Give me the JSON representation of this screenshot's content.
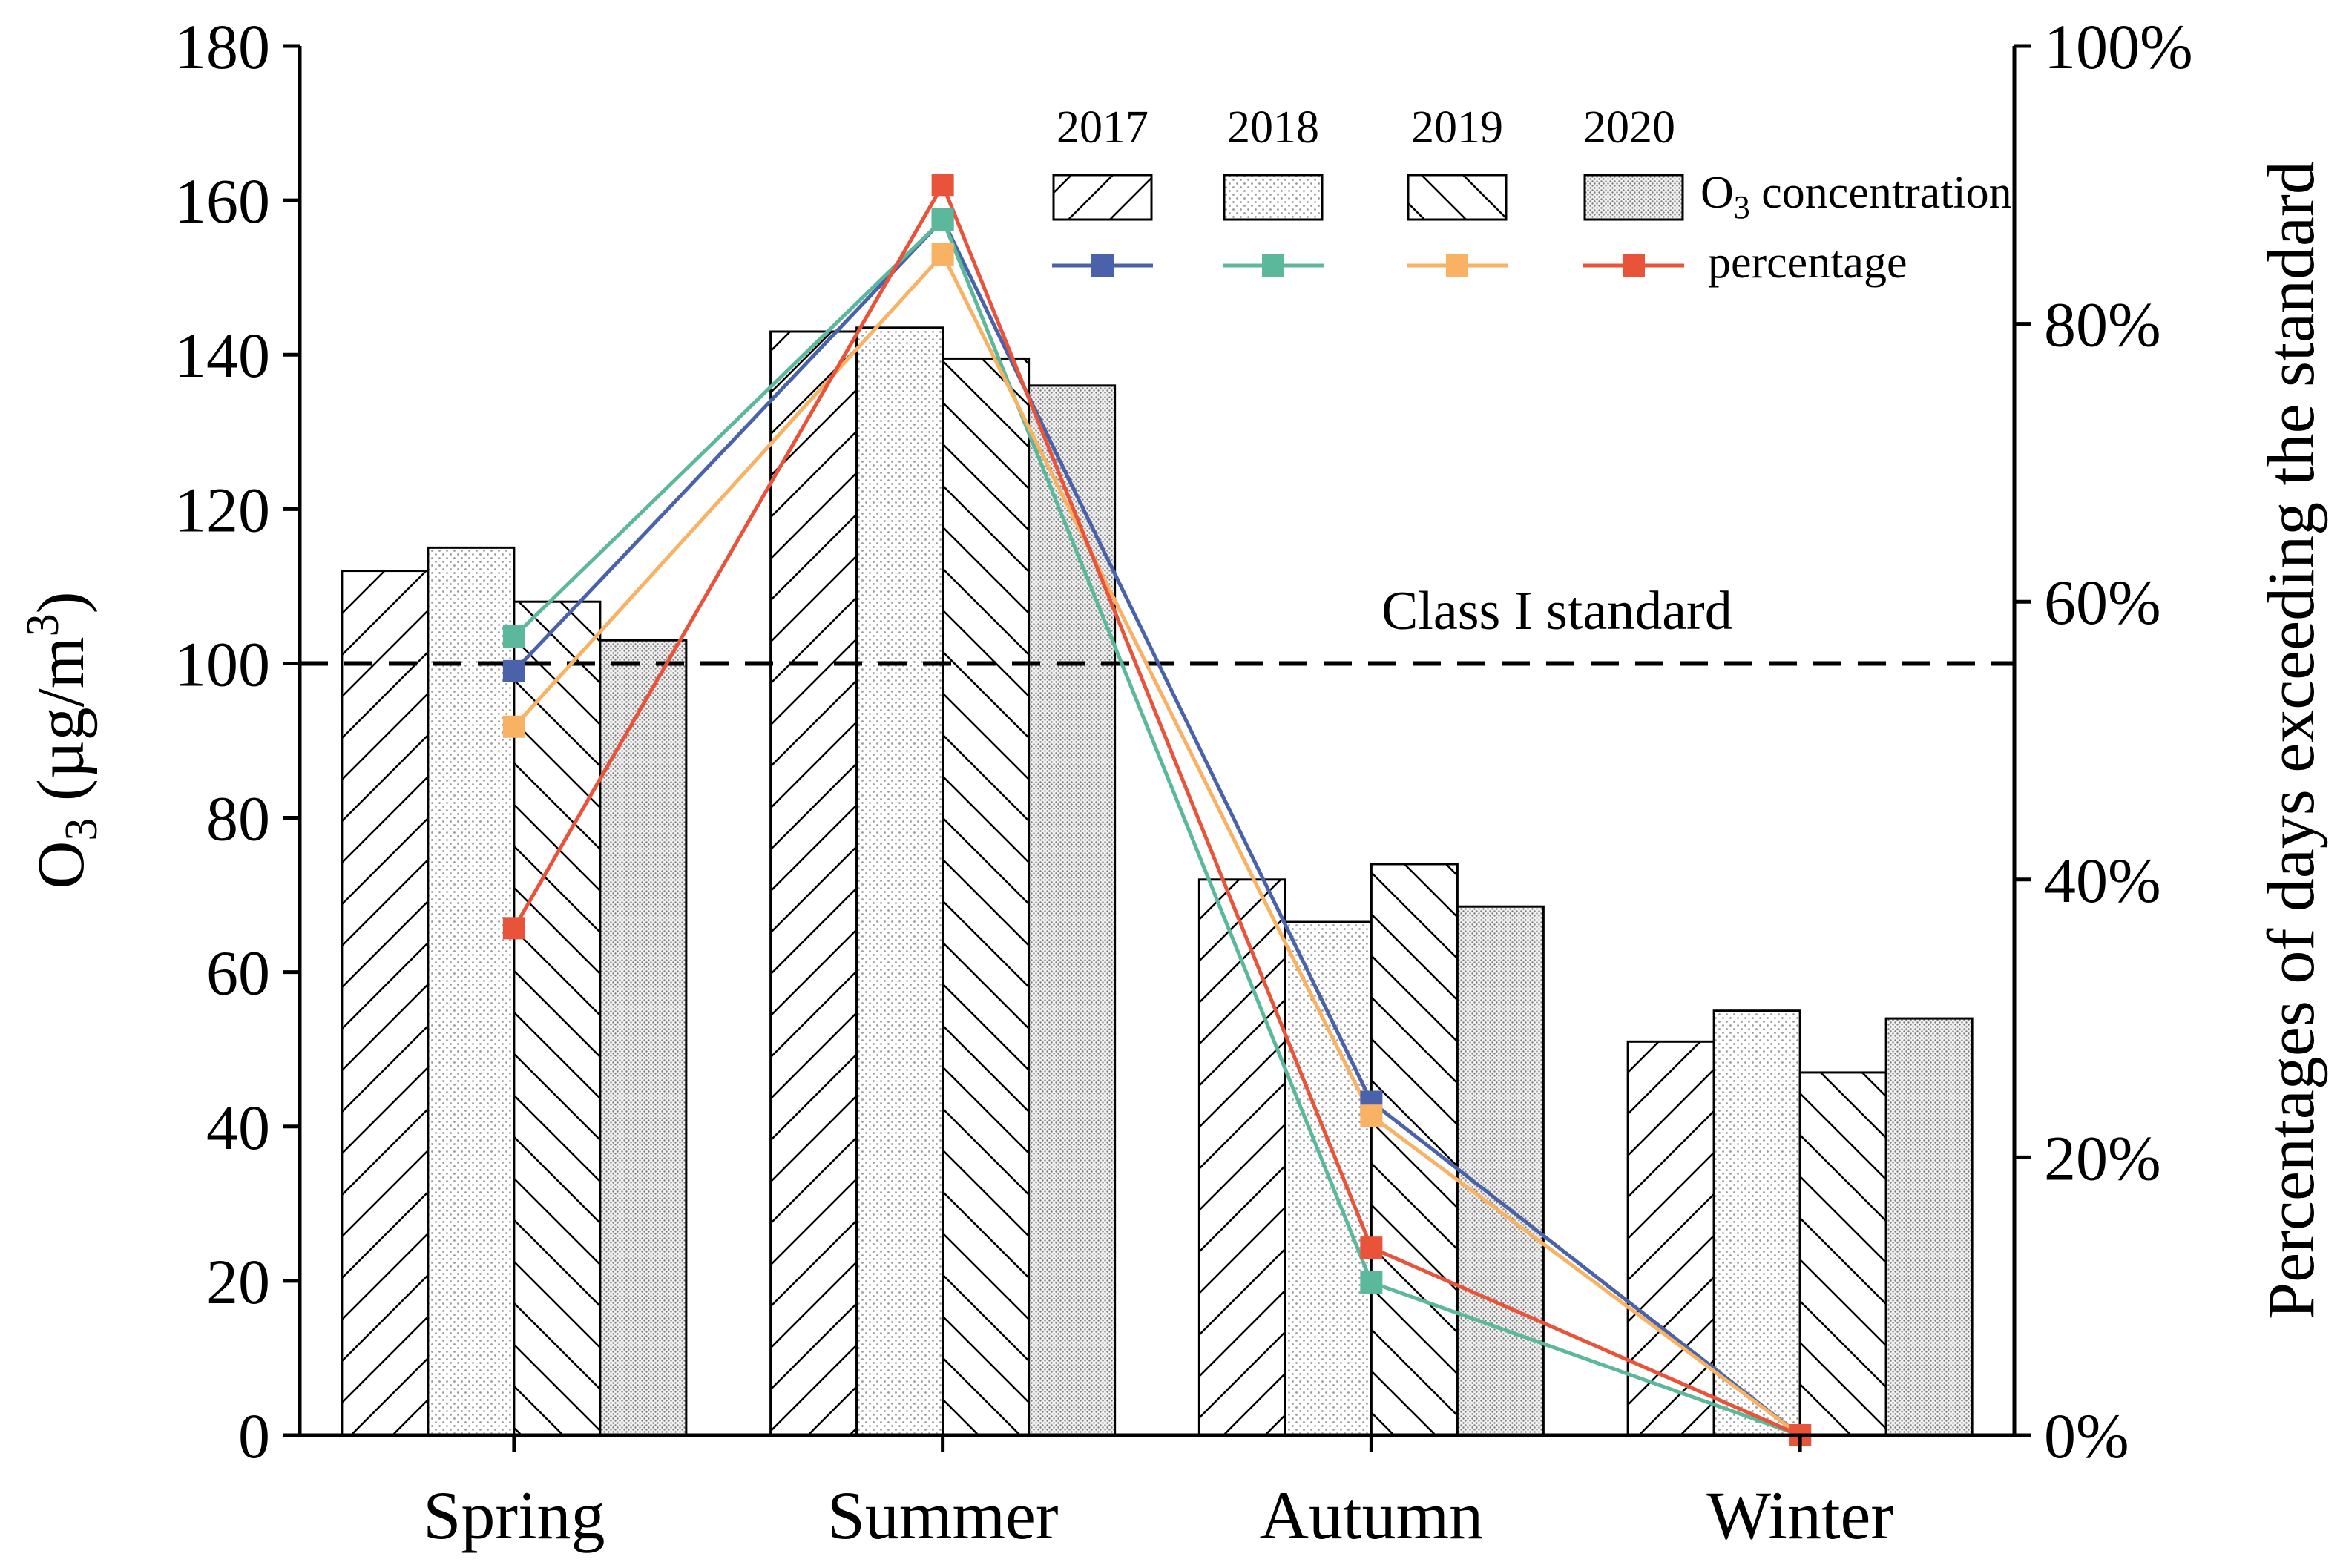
{
  "chart_data": {
    "type": "bar",
    "categories": [
      "Spring",
      "Summer",
      "Autumn",
      "Winter"
    ],
    "left_axis": {
      "label_prefix": "O",
      "label_subscript": "3",
      "label_unit": "(µg/m",
      "label_superscript": "3",
      "label_close": ")",
      "ylim": [
        0,
        180
      ],
      "ticks": [
        "0",
        "20",
        "40",
        "60",
        "80",
        "100",
        "120",
        "140",
        "160",
        "180"
      ]
    },
    "right_axis": {
      "label": "Percentages of days exceeding the standard",
      "ylim": [
        0,
        100
      ],
      "ticks": [
        "0%",
        "20%",
        "40%",
        "60%",
        "80%",
        "100%"
      ]
    },
    "bar_series": [
      {
        "name": "2017",
        "pattern": "diag-right",
        "values": [
          112,
          143,
          72,
          51
        ]
      },
      {
        "name": "2018",
        "pattern": "dots",
        "values": [
          115,
          143.5,
          66.5,
          55
        ]
      },
      {
        "name": "2019",
        "pattern": "diag-left",
        "values": [
          108,
          139.5,
          74,
          47
        ]
      },
      {
        "name": "2020",
        "pattern": "dense",
        "values": [
          103,
          136,
          68.5,
          54
        ]
      }
    ],
    "line_series": [
      {
        "name": "2017",
        "color": "#4a62aa",
        "values": [
          55,
          87.5,
          24,
          0
        ]
      },
      {
        "name": "2018",
        "color": "#5cb89a",
        "values": [
          57.5,
          87.5,
          11,
          0
        ]
      },
      {
        "name": "2019",
        "color": "#f9b264",
        "values": [
          51,
          85,
          23,
          0
        ]
      },
      {
        "name": "2020",
        "color": "#e8533a",
        "values": [
          36.5,
          90,
          13.5,
          0
        ]
      }
    ],
    "reference_line": {
      "value": 100,
      "label": "Class I standard"
    },
    "legend": {
      "years": [
        "2017",
        "2018",
        "2019",
        "2020"
      ],
      "bar_label_prefix": "O",
      "bar_label_sub": "3",
      "bar_label_rest": " concentration",
      "line_label": "percentage",
      "position": "top-right"
    }
  }
}
